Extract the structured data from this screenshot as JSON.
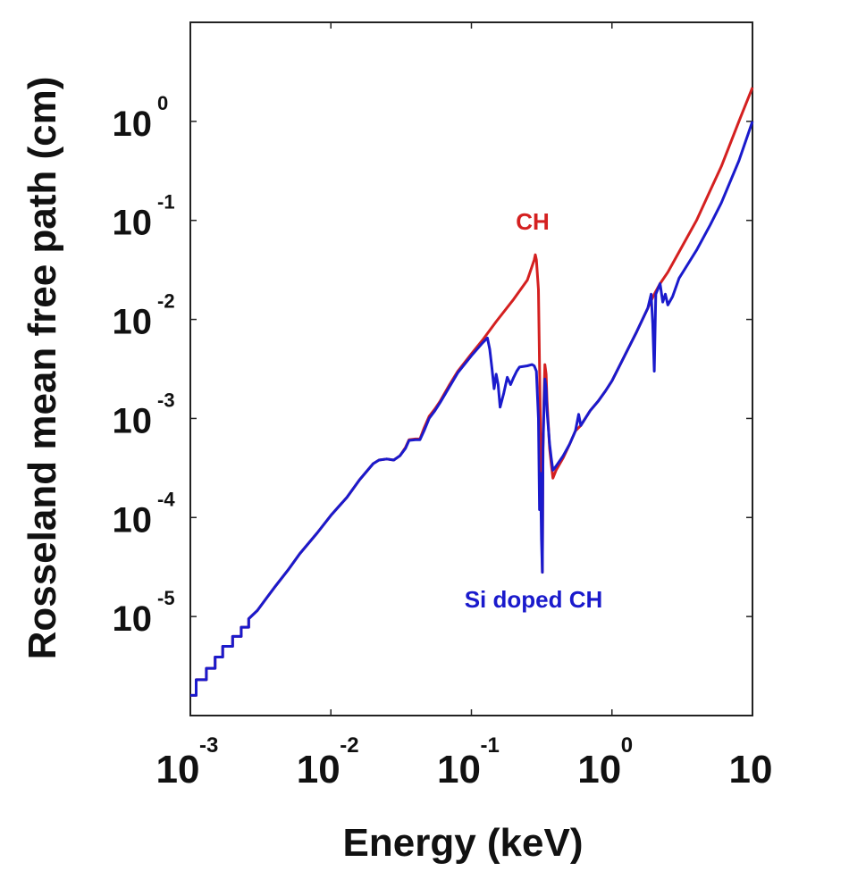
{
  "chart_data": {
    "type": "line",
    "title": "",
    "xlabel": "Energy (keV)",
    "ylabel": "Rosseland mean free path (cm)",
    "xscale": "log",
    "yscale": "log",
    "xlim": [
      0.001,
      10
    ],
    "ylim": [
      1e-06,
      10
    ],
    "grid": false,
    "legend": "inline labels",
    "x_ticks": [
      {
        "value": 0.001,
        "base": "10",
        "exp": "-3"
      },
      {
        "value": 0.01,
        "base": "10",
        "exp": "-2"
      },
      {
        "value": 0.1,
        "base": "10",
        "exp": "-1"
      },
      {
        "value": 1,
        "base": "10",
        "exp": "0"
      },
      {
        "value": 10,
        "base": "10",
        "exp": ""
      }
    ],
    "y_ticks": [
      {
        "value": 1,
        "base": "10",
        "exp": "0"
      },
      {
        "value": 0.1,
        "base": "10",
        "exp": "-1"
      },
      {
        "value": 0.01,
        "base": "10",
        "exp": "-2"
      },
      {
        "value": 0.001,
        "base": "10",
        "exp": "-3"
      },
      {
        "value": 0.0001,
        "base": "10",
        "exp": "-4"
      },
      {
        "value": 1e-05,
        "base": "10",
        "exp": "-5"
      }
    ],
    "series": [
      {
        "name": "CH",
        "color": "#d42020",
        "points": [
          [
            0.001,
            1.6e-06
          ],
          [
            0.0011,
            1.6e-06
          ],
          [
            0.0011,
            2.3e-06
          ],
          [
            0.0013,
            2.3e-06
          ],
          [
            0.0013,
            3e-06
          ],
          [
            0.0015,
            3e-06
          ],
          [
            0.0015,
            3.9e-06
          ],
          [
            0.0017,
            3.9e-06
          ],
          [
            0.0017,
            5e-06
          ],
          [
            0.002,
            5e-06
          ],
          [
            0.002,
            6.3e-06
          ],
          [
            0.0023,
            6.3e-06
          ],
          [
            0.0023,
            7.8e-06
          ],
          [
            0.0026,
            7.8e-06
          ],
          [
            0.0026,
            9.5e-06
          ],
          [
            0.003,
            1.15e-05
          ],
          [
            0.0035,
            1.55e-05
          ],
          [
            0.004,
            2e-05
          ],
          [
            0.005,
            3e-05
          ],
          [
            0.006,
            4.3e-05
          ],
          [
            0.008,
            7e-05
          ],
          [
            0.01,
            0.000105
          ],
          [
            0.013,
            0.00016
          ],
          [
            0.016,
            0.00024
          ],
          [
            0.02,
            0.00035
          ],
          [
            0.022,
            0.00038
          ],
          [
            0.025,
            0.00039
          ],
          [
            0.028,
            0.00038
          ],
          [
            0.031,
            0.00042
          ],
          [
            0.034,
            0.00051
          ],
          [
            0.036,
            0.00061
          ],
          [
            0.04,
            0.00062
          ],
          [
            0.043,
            0.00062
          ],
          [
            0.046,
            0.0008
          ],
          [
            0.05,
            0.00105
          ],
          [
            0.055,
            0.00125
          ],
          [
            0.06,
            0.0015
          ],
          [
            0.07,
            0.0022
          ],
          [
            0.08,
            0.003
          ],
          [
            0.1,
            0.0045
          ],
          [
            0.12,
            0.0062
          ],
          [
            0.15,
            0.0095
          ],
          [
            0.2,
            0.016
          ],
          [
            0.25,
            0.025
          ],
          [
            0.28,
            0.04
          ],
          [
            0.285,
            0.045
          ],
          [
            0.29,
            0.04
          ],
          [
            0.3,
            0.02
          ],
          [
            0.305,
            0.0035
          ],
          [
            0.31,
            0.0008
          ],
          [
            0.315,
            0.0002
          ],
          [
            0.32,
            2.8e-05
          ],
          [
            0.323,
            0.0005
          ],
          [
            0.328,
            0.0015
          ],
          [
            0.333,
            0.0035
          ],
          [
            0.34,
            0.0028
          ],
          [
            0.345,
            0.0015
          ],
          [
            0.36,
            0.0005
          ],
          [
            0.37,
            0.00035
          ],
          [
            0.38,
            0.00025
          ],
          [
            0.4,
            0.0003
          ],
          [
            0.45,
            0.0004
          ],
          [
            0.5,
            0.00055
          ],
          [
            0.55,
            0.00075
          ],
          [
            0.6,
            0.00085
          ],
          [
            0.7,
            0.0012
          ],
          [
            0.8,
            0.0015
          ],
          [
            0.9,
            0.0019
          ],
          [
            1.0,
            0.0024
          ],
          [
            1.2,
            0.004
          ],
          [
            1.5,
            0.0075
          ],
          [
            1.8,
            0.013
          ],
          [
            2.0,
            0.018
          ],
          [
            2.2,
            0.023
          ],
          [
            2.5,
            0.03
          ],
          [
            3.0,
            0.048
          ],
          [
            4.0,
            0.1
          ],
          [
            5.0,
            0.2
          ],
          [
            6.0,
            0.35
          ],
          [
            8.0,
            1.0
          ],
          [
            10.0,
            2.2
          ]
        ]
      },
      {
        "name": "Si doped CH",
        "color": "#1a1acc",
        "points": [
          [
            0.001,
            1.6e-06
          ],
          [
            0.0011,
            1.6e-06
          ],
          [
            0.0011,
            2.3e-06
          ],
          [
            0.0013,
            2.3e-06
          ],
          [
            0.0013,
            3e-06
          ],
          [
            0.0015,
            3e-06
          ],
          [
            0.0015,
            3.9e-06
          ],
          [
            0.0017,
            3.9e-06
          ],
          [
            0.0017,
            5e-06
          ],
          [
            0.002,
            5e-06
          ],
          [
            0.002,
            6.3e-06
          ],
          [
            0.0023,
            6.3e-06
          ],
          [
            0.0023,
            7.8e-06
          ],
          [
            0.0026,
            7.8e-06
          ],
          [
            0.0026,
            9.5e-06
          ],
          [
            0.003,
            1.15e-05
          ],
          [
            0.0035,
            1.55e-05
          ],
          [
            0.004,
            2e-05
          ],
          [
            0.005,
            3e-05
          ],
          [
            0.006,
            4.3e-05
          ],
          [
            0.008,
            7e-05
          ],
          [
            0.01,
            0.000105
          ],
          [
            0.013,
            0.00016
          ],
          [
            0.016,
            0.00024
          ],
          [
            0.02,
            0.00035
          ],
          [
            0.022,
            0.00038
          ],
          [
            0.025,
            0.00039
          ],
          [
            0.028,
            0.00038
          ],
          [
            0.031,
            0.00042
          ],
          [
            0.034,
            0.0005
          ],
          [
            0.036,
            0.0006
          ],
          [
            0.04,
            0.00061
          ],
          [
            0.043,
            0.00061
          ],
          [
            0.046,
            0.00075
          ],
          [
            0.05,
            0.001
          ],
          [
            0.055,
            0.0012
          ],
          [
            0.06,
            0.00145
          ],
          [
            0.07,
            0.0021
          ],
          [
            0.08,
            0.0029
          ],
          [
            0.1,
            0.0043
          ],
          [
            0.12,
            0.0058
          ],
          [
            0.13,
            0.0065
          ],
          [
            0.135,
            0.005
          ],
          [
            0.14,
            0.0032
          ],
          [
            0.145,
            0.002
          ],
          [
            0.15,
            0.0028
          ],
          [
            0.155,
            0.0022
          ],
          [
            0.16,
            0.0013
          ],
          [
            0.17,
            0.0018
          ],
          [
            0.18,
            0.0026
          ],
          [
            0.19,
            0.0022
          ],
          [
            0.2,
            0.0026
          ],
          [
            0.21,
            0.003
          ],
          [
            0.22,
            0.0033
          ],
          [
            0.25,
            0.0034
          ],
          [
            0.27,
            0.0035
          ],
          [
            0.28,
            0.0034
          ],
          [
            0.29,
            0.003
          ],
          [
            0.3,
            0.001
          ],
          [
            0.305,
            0.00012
          ],
          [
            0.31,
            0.00028
          ],
          [
            0.315,
            6e-05
          ],
          [
            0.32,
            2.8e-05
          ],
          [
            0.323,
            0.0005
          ],
          [
            0.328,
            0.0012
          ],
          [
            0.333,
            0.0025
          ],
          [
            0.34,
            0.002
          ],
          [
            0.345,
            0.0012
          ],
          [
            0.36,
            0.00055
          ],
          [
            0.37,
            0.0004
          ],
          [
            0.38,
            0.0003
          ],
          [
            0.4,
            0.00033
          ],
          [
            0.45,
            0.00042
          ],
          [
            0.5,
            0.00055
          ],
          [
            0.55,
            0.00075
          ],
          [
            0.58,
            0.0011
          ],
          [
            0.6,
            0.00085
          ],
          [
            0.7,
            0.0012
          ],
          [
            0.8,
            0.0015
          ],
          [
            0.9,
            0.0019
          ],
          [
            1.0,
            0.0024
          ],
          [
            1.2,
            0.004
          ],
          [
            1.5,
            0.0075
          ],
          [
            1.8,
            0.013
          ],
          [
            1.9,
            0.018
          ],
          [
            1.95,
            0.009
          ],
          [
            2.0,
            0.003
          ],
          [
            2.05,
            0.018
          ],
          [
            2.2,
            0.023
          ],
          [
            2.3,
            0.015
          ],
          [
            2.4,
            0.018
          ],
          [
            2.5,
            0.014
          ],
          [
            2.7,
            0.017
          ],
          [
            3.0,
            0.026
          ],
          [
            4.0,
            0.05
          ],
          [
            5.0,
            0.09
          ],
          [
            6.0,
            0.15
          ],
          [
            8.0,
            0.4
          ],
          [
            10.0,
            1.0
          ]
        ]
      }
    ]
  }
}
